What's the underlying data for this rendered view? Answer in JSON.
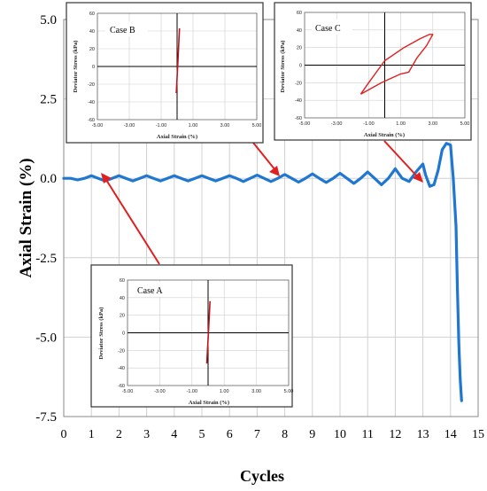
{
  "chart_data": [
    {
      "type": "line",
      "title": "",
      "xlabel": "Cycles",
      "ylabel": "Axial Strain (%)",
      "xlim": [
        0,
        15
      ],
      "ylim": [
        -7.5,
        5.0
      ],
      "xticks": [
        "0",
        "1",
        "2",
        "3",
        "4",
        "5",
        "6",
        "7",
        "8",
        "9",
        "10",
        "11",
        "12",
        "13",
        "14",
        "15"
      ],
      "yticks": [
        "5.0",
        "2.5",
        "0.0",
        "-2.5",
        "-5.0",
        "-7.5"
      ],
      "grid": true,
      "color": "#1f77d0",
      "series": [
        {
          "name": "",
          "x": [
            0,
            0.25,
            0.5,
            0.75,
            1,
            1.25,
            1.5,
            1.75,
            2,
            2.25,
            2.5,
            2.75,
            3,
            3.25,
            3.5,
            3.75,
            4,
            4.25,
            4.5,
            4.75,
            5,
            5.25,
            5.5,
            5.75,
            6,
            6.25,
            6.5,
            6.75,
            7,
            7.25,
            7.5,
            7.75,
            8,
            8.25,
            8.5,
            8.75,
            9,
            9.25,
            9.5,
            9.75,
            10,
            10.25,
            10.5,
            10.75,
            11,
            11.25,
            11.5,
            11.75,
            12,
            12.25,
            12.5,
            12.75,
            13,
            13.1,
            13.25,
            13.4,
            13.55,
            13.7,
            13.85,
            14,
            14.1,
            14.2,
            14.25,
            14.3,
            14.35,
            14.4
          ],
          "y": [
            0,
            0,
            -0.05,
            0,
            0.08,
            0,
            -0.08,
            0,
            0.08,
            0,
            -0.08,
            0,
            0.08,
            0,
            -0.08,
            0,
            0.08,
            0,
            -0.08,
            0,
            0.08,
            0,
            -0.08,
            0,
            0.08,
            0,
            -0.1,
            0,
            0.1,
            0,
            -0.1,
            0,
            0.12,
            0,
            -0.12,
            0,
            0.14,
            0,
            -0.13,
            0,
            0.16,
            0,
            -0.16,
            0,
            0.2,
            0,
            -0.2,
            0,
            0.3,
            0,
            -0.1,
            0.2,
            0.45,
            0.1,
            -0.25,
            -0.2,
            0.25,
            0.9,
            1.1,
            1.05,
            0,
            -1.5,
            -3.5,
            -5.2,
            -6.3,
            -7.0
          ]
        }
      ]
    },
    {
      "type": "line",
      "annotation": "Case A",
      "xlabel": "Axial Strain (%)",
      "ylabel": "Deviator Stress (kPa)",
      "xlim": [
        -5,
        5
      ],
      "ylim": [
        -60,
        60
      ],
      "xticks": [
        "-5.00",
        "-3.00",
        "-1.00",
        "1.00",
        "3.00",
        "5.00"
      ],
      "yticks": [
        "60",
        "40",
        "20",
        "0",
        "-20",
        "-40",
        "-60"
      ],
      "color": "#c0141c",
      "series": [
        {
          "name": "",
          "x": [
            -0.08,
            0.02,
            0.12
          ],
          "y": [
            -35,
            0,
            36
          ]
        }
      ]
    },
    {
      "type": "line",
      "annotation": "Case B",
      "xlabel": "Axial Strain (%)",
      "ylabel": "Deviator Stress (kPa)",
      "xlim": [
        -5,
        5
      ],
      "ylim": [
        -60,
        60
      ],
      "xticks": [
        "-5.00",
        "-3.00",
        "-1.00",
        "1.00",
        "3.00",
        "5.00"
      ],
      "yticks": [
        "60",
        "40",
        "20",
        "0",
        "-20",
        "-40",
        "-60"
      ],
      "color": "#c0141c",
      "series": [
        {
          "name": "",
          "x": [
            -0.05,
            0.05,
            0.15
          ],
          "y": [
            -30,
            5,
            43
          ]
        }
      ]
    },
    {
      "type": "line",
      "annotation": "Case C",
      "xlabel": "Axial Strain (%)",
      "ylabel": "Deviator Stress (kPa)",
      "xlim": [
        -5,
        5
      ],
      "ylim": [
        -60,
        60
      ],
      "xticks": [
        "-5.00",
        "-3.00",
        "-1.00",
        "1.00",
        "3.00",
        "5.00"
      ],
      "yticks": [
        "60",
        "40",
        "20",
        "0",
        "-20",
        "-40",
        "-60"
      ],
      "color": "#e02020",
      "series": [
        {
          "name": "",
          "x": [
            -1.5,
            -0.2,
            1.0,
            1.5,
            2.0,
            2.6,
            3.0,
            2.8,
            2.2,
            1.2,
            0.0,
            -1.0,
            -1.5
          ],
          "y": [
            -33,
            -20,
            -10,
            -8,
            8,
            22,
            35,
            35,
            30,
            20,
            5,
            -20,
            -33
          ]
        }
      ]
    }
  ]
}
